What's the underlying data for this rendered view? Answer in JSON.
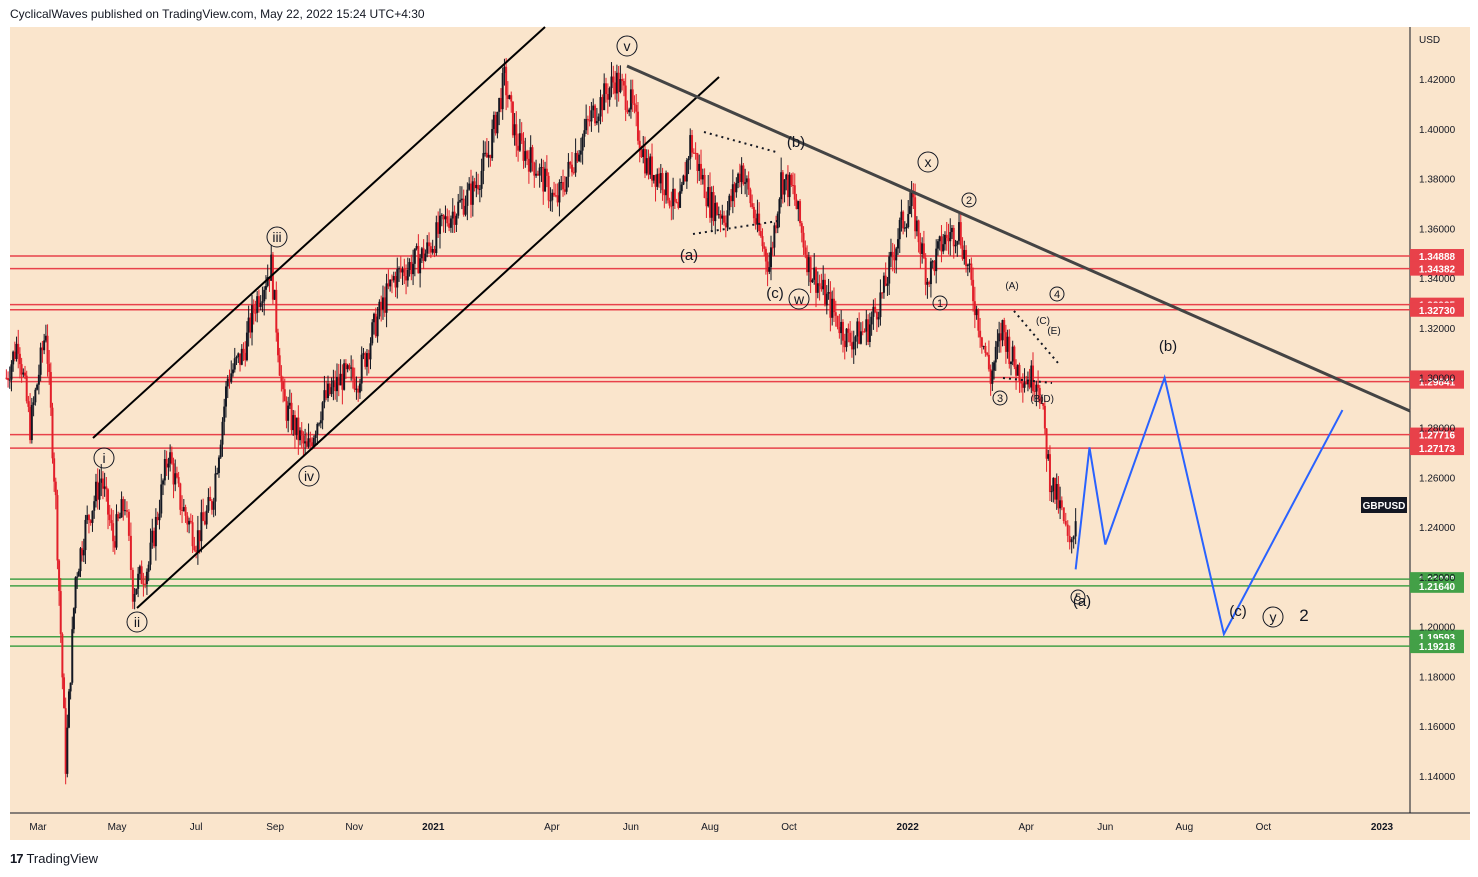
{
  "header": {
    "publisher": "CyclicalWaves published on TradingView.com, May 22, 2022 15:24 UTC+4:30"
  },
  "footer": {
    "brand": "TradingView"
  },
  "colors": {
    "background": "#fae5cc",
    "candle_up": "#131722",
    "candle_down": "#e21f2a",
    "resistance": "#e8414a",
    "support": "#43a047",
    "projection": "#2962ff",
    "trendline": "#444444"
  },
  "chart_data": {
    "type": "line",
    "title": "",
    "symbol": "GBPUSD",
    "currency": "USD",
    "ylim": [
      1.128,
      1.443
    ],
    "grid": false,
    "price_axis_side": "right",
    "y_ticks": [
      "1.42000",
      "1.40000",
      "1.38000",
      "1.36000",
      "1.34000",
      "1.32000",
      "1.30000",
      "1.28000",
      "1.26000",
      "1.24000",
      "1.22000",
      "1.20000",
      "1.18000",
      "1.16000",
      "1.14000"
    ],
    "x_ticks": [
      {
        "label": "Mar",
        "t": 2
      },
      {
        "label": "May",
        "t": 4
      },
      {
        "label": "Jul",
        "t": 6
      },
      {
        "label": "Sep",
        "t": 8
      },
      {
        "label": "Nov",
        "t": 10
      },
      {
        "label": "2021",
        "t": 12
      },
      {
        "label": "Apr",
        "t": 15
      },
      {
        "label": "Jun",
        "t": 17
      },
      {
        "label": "Aug",
        "t": 19
      },
      {
        "label": "Oct",
        "t": 21
      },
      {
        "label": "2022",
        "t": 24
      },
      {
        "label": "Apr",
        "t": 27
      },
      {
        "label": "Jun",
        "t": 29
      },
      {
        "label": "Aug",
        "t": 31
      },
      {
        "label": "Oct",
        "t": 33
      },
      {
        "label": "2023",
        "t": 36
      }
    ],
    "price_path": [
      [
        1.2,
        1.3
      ],
      [
        1.5,
        1.315
      ],
      [
        1.8,
        1.28
      ],
      [
        2.2,
        1.32
      ],
      [
        2.45,
        1.25
      ],
      [
        2.7,
        1.145
      ],
      [
        2.95,
        1.22
      ],
      [
        3.2,
        1.24
      ],
      [
        3.6,
        1.26
      ],
      [
        3.9,
        1.235
      ],
      [
        4.2,
        1.25
      ],
      [
        4.4,
        1.215
      ],
      [
        4.8,
        1.225
      ],
      [
        5.3,
        1.27
      ],
      [
        5.6,
        1.25
      ],
      [
        6.0,
        1.235
      ],
      [
        6.4,
        1.25
      ],
      [
        6.8,
        1.3
      ],
      [
        7.2,
        1.31
      ],
      [
        7.5,
        1.33
      ],
      [
        7.9,
        1.345
      ],
      [
        8.2,
        1.29
      ],
      [
        8.5,
        1.28
      ],
      [
        8.8,
        1.27
      ],
      [
        9.2,
        1.29
      ],
      [
        9.7,
        1.3
      ],
      [
        10.1,
        1.3
      ],
      [
        10.5,
        1.32
      ],
      [
        11.0,
        1.34
      ],
      [
        11.4,
        1.345
      ],
      [
        11.8,
        1.35
      ],
      [
        12.4,
        1.365
      ],
      [
        13.0,
        1.375
      ],
      [
        13.4,
        1.39
      ],
      [
        13.8,
        1.42
      ],
      [
        14.1,
        1.395
      ],
      [
        14.6,
        1.385
      ],
      [
        15.1,
        1.37
      ],
      [
        15.6,
        1.39
      ],
      [
        16.0,
        1.405
      ],
      [
        16.6,
        1.42
      ],
      [
        17.0,
        1.41
      ],
      [
        17.4,
        1.385
      ],
      [
        17.8,
        1.38
      ],
      [
        18.2,
        1.365
      ],
      [
        18.5,
        1.395
      ],
      [
        19.0,
        1.37
      ],
      [
        19.4,
        1.365
      ],
      [
        19.8,
        1.385
      ],
      [
        20.2,
        1.36
      ],
      [
        20.5,
        1.345
      ],
      [
        20.8,
        1.38
      ],
      [
        21.1,
        1.375
      ],
      [
        21.5,
        1.345
      ],
      [
        22.0,
        1.33
      ],
      [
        22.5,
        1.315
      ],
      [
        23.0,
        1.32
      ],
      [
        23.4,
        1.335
      ],
      [
        23.8,
        1.36
      ],
      [
        24.1,
        1.37
      ],
      [
        24.5,
        1.34
      ],
      [
        24.9,
        1.355
      ],
      [
        25.3,
        1.36
      ],
      [
        25.7,
        1.33
      ],
      [
        26.1,
        1.3
      ],
      [
        26.4,
        1.32
      ],
      [
        26.7,
        1.305
      ],
      [
        27.0,
        1.3
      ],
      [
        27.3,
        1.3
      ],
      [
        27.6,
        1.26
      ],
      [
        27.9,
        1.245
      ],
      [
        28.1,
        1.23
      ],
      [
        28.3,
        1.25
      ]
    ],
    "projection_path": [
      [
        28.25,
        1.223
      ],
      [
        28.6,
        1.272
      ],
      [
        29.0,
        1.233
      ],
      [
        30.5,
        1.3
      ],
      [
        32.0,
        1.197
      ],
      [
        35.0,
        1.287
      ]
    ],
    "resistance_levels": [
      "1.34888",
      "1.34382",
      "1.32935",
      "1.32730",
      "1.30011",
      "1.29841",
      "1.27716",
      "1.27173"
    ],
    "support_levels": [
      "1.21908",
      "1.21640",
      "1.19593",
      "1.19218"
    ],
    "last_price_label": "GBPUSD",
    "wave_labels": {
      "circled": [
        "i",
        "ii",
        "iii",
        "iv",
        "v",
        "w",
        "x",
        "y"
      ],
      "circled_numbers": [
        "1",
        "2",
        "3",
        "4",
        "5"
      ],
      "plain": [
        "(a)",
        "(b)",
        "(c)",
        "(a)",
        "(b)",
        "(c)",
        "(A)",
        "(C)",
        "(E)",
        "(B)",
        "(D)",
        "2"
      ]
    }
  }
}
